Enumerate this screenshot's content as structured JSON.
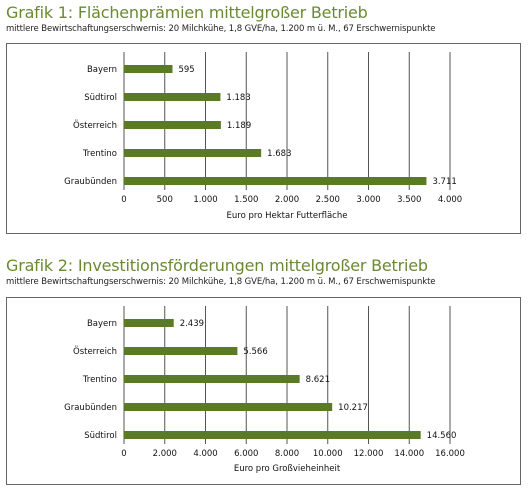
{
  "charts": [
    {
      "title": "Grafik 1: Flächenprämien mittelgroßer Betrieb",
      "subtitle": "mittlere Bewirtschaftungserschwernis: 20 Milchkühe, 1,8 GVE/ha, 1.200 m ü. M., 67 Erschwernispunkte"
    },
    {
      "title": "Grafik 2: Investitionsförderungen mittelgroßer Betrieb",
      "subtitle": "mittlere Bewirtschaftungserschwernis: 20 Milchkühe, 1,8 GVE/ha, 1.200 m ü. M., 67 Erschwernispunkte"
    }
  ],
  "colors": {
    "bar": "#5a7a25",
    "title": "#6a8a32",
    "grid": "#555555"
  },
  "chart_data": [
    {
      "type": "bar",
      "orientation": "horizontal",
      "title": "Grafik 1: Flächenprämien mittelgroßer Betrieb",
      "subtitle": "mittlere Bewirtschaftungserschwernis: 20 Milchkühe, 1,8 GVE/ha, 1.200 m ü. M., 67 Erschwernispunkte",
      "categories": [
        "Bayern",
        "Südtirol",
        "Österreich",
        "Trentino",
        "Graubünden"
      ],
      "values": [
        595,
        1183,
        1189,
        1683,
        3711
      ],
      "value_labels": [
        "595",
        "1.183",
        "1.189",
        "1.683",
        "3.711"
      ],
      "xlabel": "Euro pro Hektar Futterfläche",
      "xlim": [
        0,
        4000
      ],
      "xticks": [
        0,
        500,
        1000,
        1500,
        2000,
        2500,
        3000,
        3500,
        4000
      ],
      "xtick_labels": [
        "0",
        "500",
        "1.000",
        "1.500",
        "2.000",
        "2.500",
        "3.000",
        "3.500",
        "4.000"
      ],
      "grid": true
    },
    {
      "type": "bar",
      "orientation": "horizontal",
      "title": "Grafik 2: Investitionsförderungen mittelgroßer Betrieb",
      "subtitle": "mittlere Bewirtschaftungserschwernis: 20 Milchkühe, 1,8 GVE/ha, 1.200 m ü. M., 67 Erschwernispunkte",
      "categories": [
        "Bayern",
        "Österreich",
        "Trentino",
        "Graubünden",
        "Südtirol"
      ],
      "values": [
        2439,
        5566,
        8621,
        10217,
        14560
      ],
      "value_labels": [
        "2.439",
        "5.566",
        "8.621",
        "10.217",
        "14.560"
      ],
      "xlabel": "Euro pro Großvieheinheit",
      "xlim": [
        0,
        16000
      ],
      "xticks": [
        0,
        2000,
        4000,
        6000,
        8000,
        10000,
        12000,
        14000,
        16000
      ],
      "xtick_labels": [
        "0",
        "2.000",
        "4.000",
        "6.000",
        "8.000",
        "10.000",
        "12.000",
        "14.000",
        "16.000"
      ],
      "grid": true
    }
  ]
}
